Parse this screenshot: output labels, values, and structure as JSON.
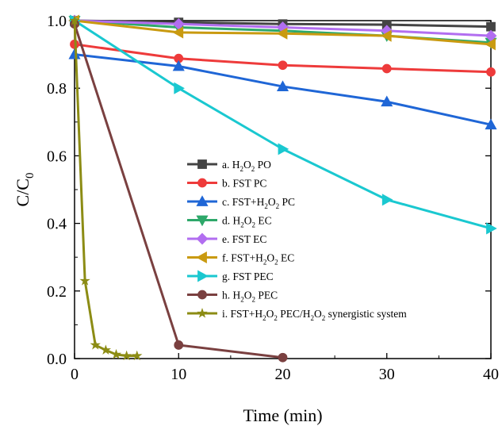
{
  "chart_data": {
    "type": "line",
    "xlabel": "Time (min)",
    "ylabel": "C/C₀",
    "xlim": [
      0,
      40
    ],
    "ylim": [
      0,
      1.0
    ],
    "xticks": [
      0,
      10,
      20,
      30,
      40
    ],
    "yticks": [
      0.0,
      0.2,
      0.4,
      0.6,
      0.8,
      1.0
    ],
    "xtick_labels": [
      "0",
      "10",
      "20",
      "30",
      "40"
    ],
    "ytick_labels": [
      "0.0",
      "0.2",
      "0.4",
      "0.6",
      "0.8",
      "1.0"
    ],
    "grid": false,
    "legend_position": "center",
    "series": [
      {
        "name": "a. H₂O₂ PO",
        "color": "#444444",
        "marker": "square",
        "x": [
          0,
          10,
          20,
          30,
          40
        ],
        "y": [
          1.0,
          0.995,
          0.99,
          0.988,
          0.982
        ]
      },
      {
        "name": "b. FST PC",
        "color": "#ee3b3b",
        "marker": "circle",
        "x": [
          0,
          10,
          20,
          30,
          40
        ],
        "y": [
          0.93,
          0.888,
          0.868,
          0.858,
          0.848
        ]
      },
      {
        "name": "c. FST+H₂O₂ PC",
        "color": "#1f66d6",
        "marker": "triangle-up",
        "x": [
          0,
          10,
          20,
          30,
          40
        ],
        "y": [
          0.9,
          0.865,
          0.805,
          0.76,
          0.692
        ]
      },
      {
        "name": "d. H₂O₂ EC",
        "color": "#2ea86a",
        "marker": "triangle-down",
        "x": [
          0,
          10,
          20,
          30,
          40
        ],
        "y": [
          1.0,
          0.98,
          0.97,
          0.955,
          0.935
        ]
      },
      {
        "name": "e. FST EC",
        "color": "#b26ef0",
        "marker": "diamond",
        "x": [
          0,
          10,
          20,
          30,
          40
        ],
        "y": [
          1.0,
          0.99,
          0.98,
          0.97,
          0.955
        ]
      },
      {
        "name": "f. FST+H₂O₂ EC",
        "color": "#c99a10",
        "marker": "triangle-left",
        "x": [
          0,
          10,
          20,
          30,
          40
        ],
        "y": [
          1.0,
          0.965,
          0.962,
          0.955,
          0.93
        ]
      },
      {
        "name": "g. FST PEC",
        "color": "#1ac8d0",
        "marker": "triangle-right",
        "x": [
          0,
          10,
          20,
          30,
          40
        ],
        "y": [
          1.0,
          0.8,
          0.62,
          0.47,
          0.385
        ]
      },
      {
        "name": "h. H₂O₂ PEC",
        "color": "#7a4040",
        "marker": "circle",
        "x": [
          0,
          10,
          20
        ],
        "y": [
          0.99,
          0.04,
          0.003
        ]
      },
      {
        "name": "i. FST+H₂O₂ PEC/H₂O₂ synergistic system",
        "color": "#8c8c14",
        "marker": "star",
        "x": [
          0,
          1,
          2,
          3,
          4,
          5,
          6
        ],
        "y": [
          1.0,
          0.23,
          0.04,
          0.025,
          0.012,
          0.008,
          0.008
        ]
      }
    ]
  }
}
